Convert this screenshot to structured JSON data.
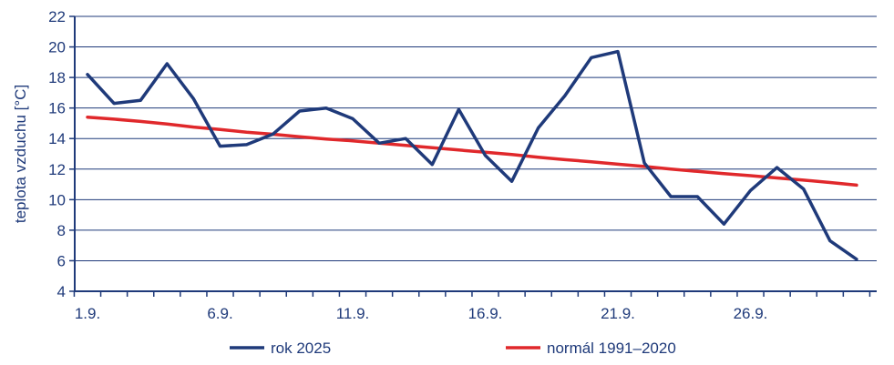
{
  "chart_data": {
    "type": "line",
    "ylabel": "teplota vzduchu [°C]",
    "xlabel": "",
    "ylim": [
      4,
      22
    ],
    "yticks": [
      "4",
      "6",
      "8",
      "10",
      "12",
      "14",
      "16",
      "18",
      "20",
      "22"
    ],
    "x_tick_labels": [
      {
        "day": 1,
        "label": "1.9."
      },
      {
        "day": 6,
        "label": "6.9."
      },
      {
        "day": 11,
        "label": "11.9."
      },
      {
        "day": 16,
        "label": "16.9."
      },
      {
        "day": 21,
        "label": "21.9."
      },
      {
        "day": 26,
        "label": "26.9."
      }
    ],
    "x": [
      1,
      2,
      3,
      4,
      5,
      6,
      7,
      8,
      9,
      10,
      11,
      12,
      13,
      14,
      15,
      16,
      17,
      18,
      19,
      20,
      21,
      22,
      23,
      24,
      25,
      26,
      27,
      28,
      29,
      30
    ],
    "grid": "horizontal",
    "legend_position": "bottom",
    "series": [
      {
        "name": "rok 2025",
        "color": "#1f3a7a",
        "values": [
          18.2,
          16.3,
          16.5,
          18.9,
          16.6,
          13.5,
          13.6,
          14.3,
          15.8,
          16.0,
          15.3,
          13.7,
          14.0,
          12.3,
          15.9,
          12.9,
          11.2,
          14.7,
          16.8,
          19.3,
          19.7,
          12.4,
          10.2,
          10.2,
          8.4,
          10.6,
          12.1,
          10.7,
          7.3,
          6.1
        ]
      },
      {
        "name": "normál 1991–2020",
        "color": "#e0282b",
        "values": [
          15.4,
          15.27,
          15.12,
          14.95,
          14.75,
          14.6,
          14.42,
          14.28,
          14.12,
          13.97,
          13.85,
          13.7,
          13.55,
          13.4,
          13.25,
          13.1,
          12.95,
          12.78,
          12.62,
          12.48,
          12.32,
          12.17,
          12.0,
          11.85,
          11.7,
          11.57,
          11.42,
          11.28,
          11.12,
          10.95
        ]
      }
    ]
  }
}
